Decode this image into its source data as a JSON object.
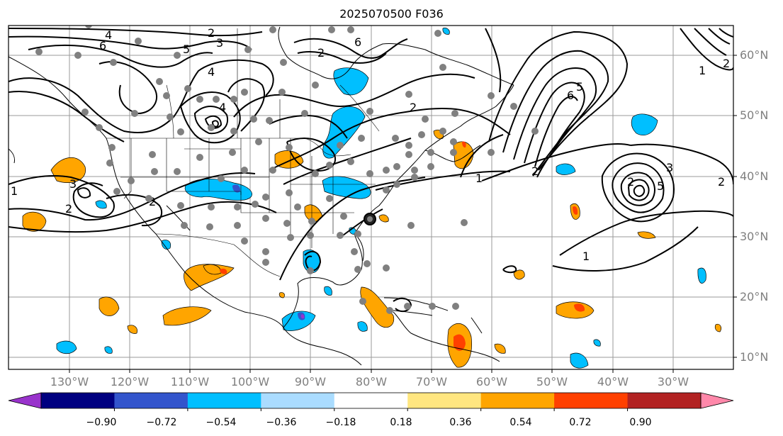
{
  "title": "2025070500 F036",
  "lat_labels": [
    "60°N",
    "50°N",
    "40°N",
    "30°N",
    "20°N",
    "10°N"
  ],
  "lon_labels": [
    "130°W",
    "120°W",
    "110°W",
    "100°W",
    "90°W",
    "80°W",
    "70°W",
    "60°W",
    "50°W",
    "40°W",
    "30°W"
  ],
  "colorbar": {
    "colors": [
      "#9933cc",
      "#000080",
      "#3355cc",
      "#00bfff",
      "#aadcff",
      "#ffffff",
      "#ffe680",
      "#ffa500",
      "#ff4000",
      "#b22222",
      "#ff88aa"
    ],
    "labels": [
      "−0.90",
      "−0.72",
      "−0.54",
      "−0.36",
      "−0.18",
      "0.18",
      "0.36",
      "0.54",
      "0.72",
      "0.90"
    ]
  },
  "contour_labels": [
    "4",
    "6",
    "2",
    "5",
    "3",
    "2",
    "4",
    "6",
    "2",
    "1",
    "3",
    "4",
    "2",
    "1",
    "2",
    "2",
    "3",
    "2",
    "6",
    "5",
    "1",
    "2",
    "2",
    "1",
    "5"
  ]
}
